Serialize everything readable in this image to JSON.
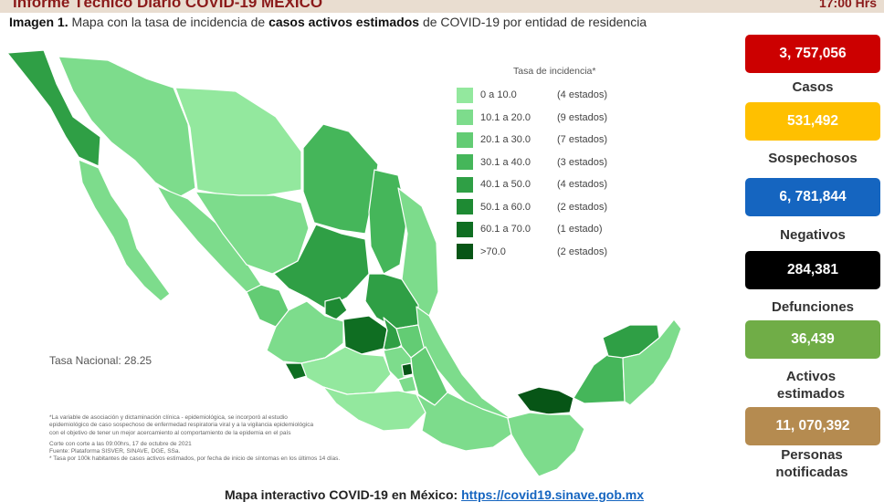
{
  "header": {
    "title": "Informe Técnico Diario COVID-19 MÉXICO",
    "time": "17:00 Hrs"
  },
  "caption": {
    "prefix": "Imagen 1.",
    "part1": " Mapa con la tasa de incidencia de ",
    "bold": "casos activos estimados",
    "part2": " de COVID-19 por entidad de residencia"
  },
  "legend": {
    "title": "Tasa de incidencia*",
    "items": [
      {
        "range": "0  a  10.0",
        "count": "(4 estados)",
        "color": "#93e89e"
      },
      {
        "range": "10.1 a 20.0",
        "count": "(9 estados)",
        "color": "#7ddc8c"
      },
      {
        "range": "20.1 a 30.0",
        "count": "(7 estados)",
        "color": "#63cc74"
      },
      {
        "range": "30.1 a 40.0",
        "count": "(3 estados)",
        "color": "#45b65a"
      },
      {
        "range": "40.1 a 50.0",
        "count": "(4 estados)",
        "color": "#2f9f45"
      },
      {
        "range": "50.1 a 60.0",
        "count": "(2 estados)",
        "color": "#1e8a33"
      },
      {
        "range": "60.1 a 70.0",
        "count": "(1 estado)",
        "color": "#0f6e22"
      },
      {
        "range": ">70.0",
        "count": "(2 estados)",
        "color": "#075516"
      }
    ]
  },
  "tasa_nacional": "Tasa Nacional: 28.25",
  "notes": [
    "*La variable de asociación y dictaminación clínica - epidemiológica, se incorporó al estudio",
    "epidemiológico de caso sospechoso de enfermedad respiratoria viral y a la vigilancia epidemiológica",
    "con el objetivo de tener un mejor acercamiento al comportamiento de la epidemia en el país",
    "Corte con corte a las 09:00hrs, 17 de octubre de 2021",
    "Fuente: Plataforma SISVER, SINAVE, DGE, SSa.",
    "* Tasa por 100k habitantes de casos activos estimados, por fecha de inicio de síntomas en los últimos 14 días."
  ],
  "bottom": {
    "label": "Mapa interactivo COVID-19 en México: ",
    "link": "https://covid19.sinave.gob.mx"
  },
  "stats": [
    {
      "value": "3, 757,056",
      "label": "Casos",
      "color": "#cc0000",
      "text_color": "#ffffff"
    },
    {
      "value": "531,492",
      "label": "Sospechosos",
      "color": "#ffc000",
      "text_color": "#ffffff"
    },
    {
      "value": "6, 781,844",
      "label": "Negativos",
      "color": "#1565c0",
      "text_color": "#ffffff"
    },
    {
      "value": "284,381",
      "label": "Defunciones",
      "color": "#000000",
      "text_color": "#ffffff"
    },
    {
      "value": "36,439",
      "label": "Activos estimados",
      "color": "#70ad47",
      "text_color": "#ffffff"
    },
    {
      "value": "11, 070,392",
      "label": "Personas notificadas",
      "color": "#b58b50",
      "text_color": "#ffffff"
    }
  ]
}
